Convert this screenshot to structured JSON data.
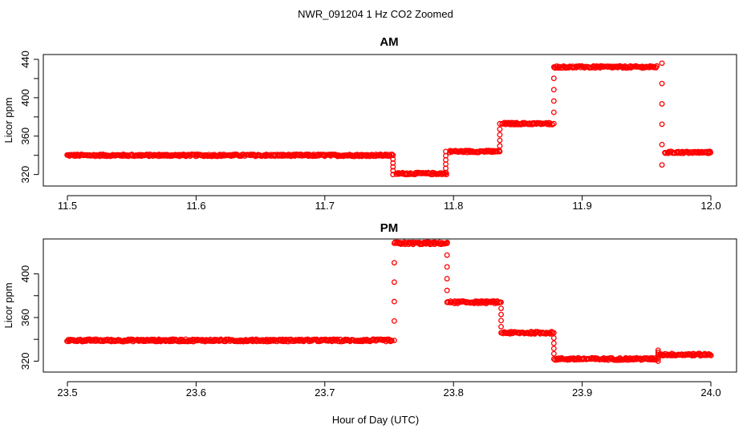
{
  "figure": {
    "title": "NWR_091204  1 Hz CO2 Zoomed",
    "xlabel": "Hour of Day (UTC)"
  },
  "colors": {
    "points": "#ff0000",
    "axis": "#000000",
    "background": "#ffffff"
  },
  "chart_data": [
    {
      "type": "scatter",
      "title": "AM",
      "xlabel": "Hour of Day (UTC)",
      "ylabel": "Licor ppm",
      "xlim": [
        11.5,
        12.0
      ],
      "ylim": [
        308,
        445
      ],
      "xticks": [
        "11.5",
        "11.6",
        "11.7",
        "11.8",
        "11.9",
        "12.0"
      ],
      "yticks": [
        "320",
        "360",
        "400",
        "440"
      ],
      "segments": [
        {
          "x": [
            11.5,
            11.753
          ],
          "y": 340
        },
        {
          "x": [
            11.756,
            11.795
          ],
          "y": 321
        },
        {
          "x": [
            11.797,
            11.836
          ],
          "y": 344
        },
        {
          "x": [
            11.838,
            11.877
          ],
          "y": 373
        },
        {
          "x": [
            11.879,
            11.959
          ],
          "y": 432
        },
        {
          "x": [
            11.964,
            12.0
          ],
          "y": 343
        }
      ],
      "transitions": [
        {
          "x": 11.753,
          "y": [
            320,
            340
          ]
        },
        {
          "x": 11.794,
          "y": [
            322,
            344
          ]
        },
        {
          "x": 11.836,
          "y": [
            344,
            373
          ]
        },
        {
          "x": 11.878,
          "y": [
            373,
            432
          ]
        },
        {
          "x": 11.962,
          "y": [
            330,
            436
          ]
        }
      ]
    },
    {
      "type": "scatter",
      "title": "PM",
      "xlabel": "Hour of Day (UTC)",
      "ylabel": "Licor ppm",
      "xlim": [
        23.5,
        24.0
      ],
      "ylim": [
        310,
        432
      ],
      "xticks": [
        "23.5",
        "23.6",
        "23.7",
        "23.8",
        "23.9",
        "24.0"
      ],
      "yticks": [
        "320",
        "360",
        "400"
      ],
      "segments": [
        {
          "x": [
            23.5,
            23.753
          ],
          "y": 339
        },
        {
          "x": [
            23.755,
            23.795
          ],
          "y": 428
        },
        {
          "x": [
            23.796,
            23.836
          ],
          "y": 374
        },
        {
          "x": [
            23.838,
            23.877
          ],
          "y": 346
        },
        {
          "x": [
            23.879,
            23.958
          ],
          "y": 322
        },
        {
          "x": [
            23.96,
            24.0
          ],
          "y": 326
        }
      ],
      "transitions": [
        {
          "x": 23.754,
          "y": [
            339,
            428
          ]
        },
        {
          "x": 23.795,
          "y": [
            374,
            428
          ]
        },
        {
          "x": 23.837,
          "y": [
            346,
            374
          ]
        },
        {
          "x": 23.878,
          "y": [
            322,
            346
          ]
        },
        {
          "x": 23.959,
          "y": [
            320,
            330
          ]
        }
      ]
    }
  ]
}
